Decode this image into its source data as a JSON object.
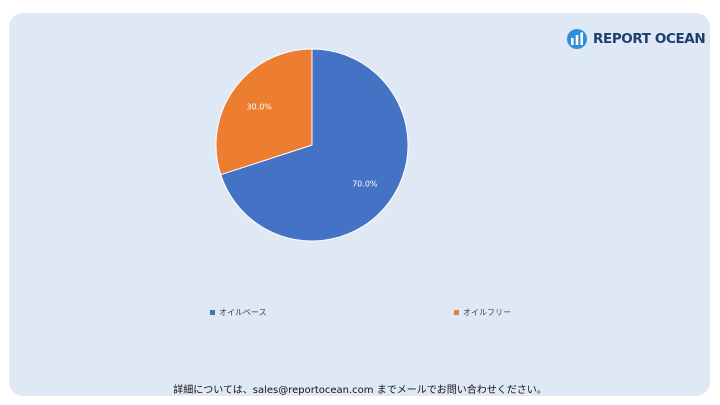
{
  "brand": {
    "name": "REPORT OCEAN"
  },
  "chart_data": {
    "type": "pie",
    "categories": [
      "オイルベース",
      "オイルフリー"
    ],
    "values": [
      70.0,
      30.0
    ],
    "data_labels": [
      "70.0%",
      "30.0%"
    ],
    "colors": [
      "#4472c4",
      "#ed7d31"
    ],
    "legend_position": "bottom"
  },
  "legend": {
    "items": [
      "オイルベース",
      "オイルフリー"
    ]
  },
  "footer": {
    "text": "詳細については、sales@reportocean.com までメールでお問い合わせください。"
  }
}
